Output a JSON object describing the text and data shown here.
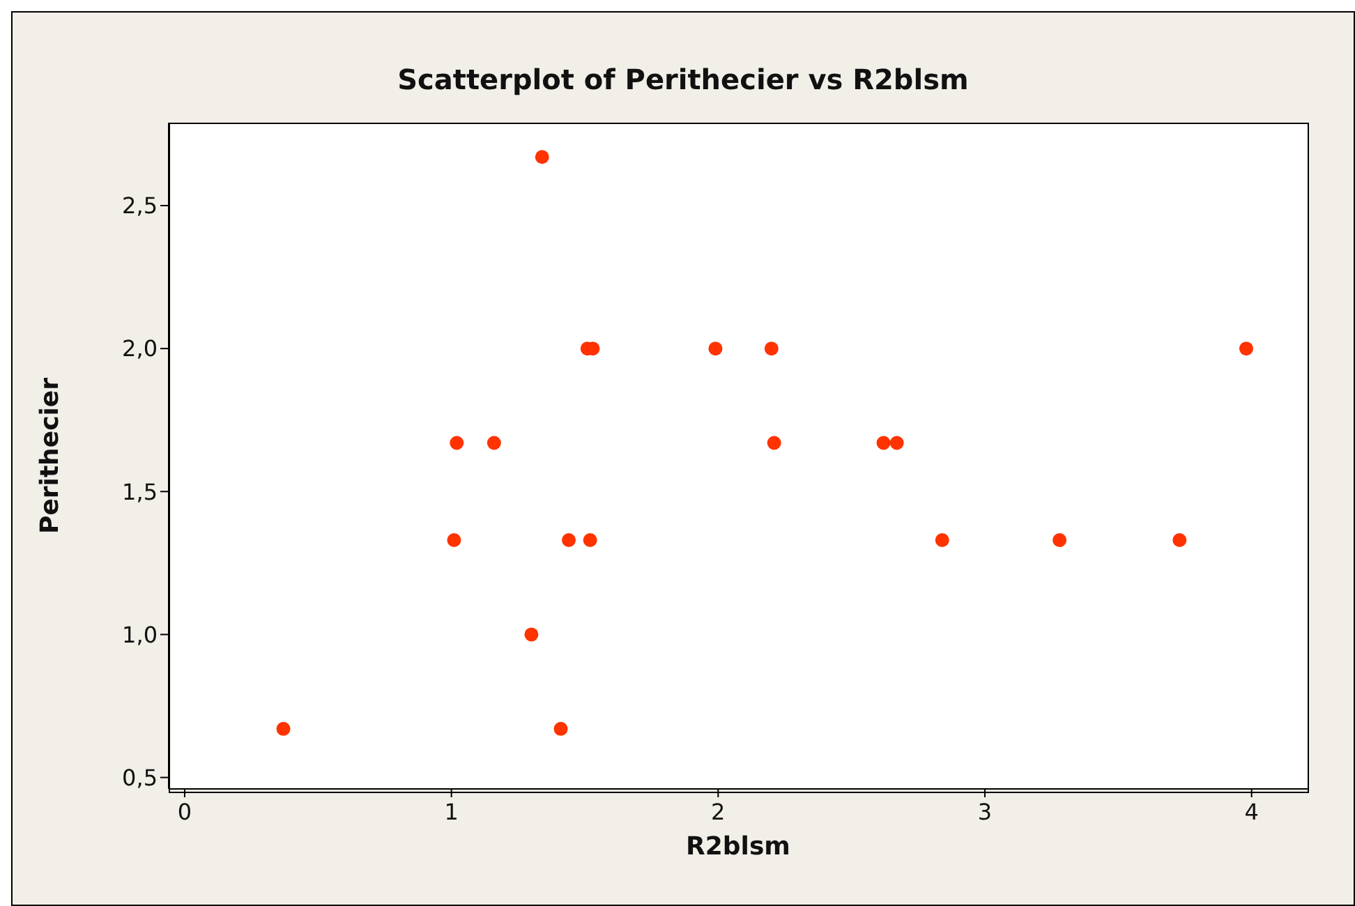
{
  "chart_data": {
    "type": "scatter",
    "title": "Scatterplot of Perithecier vs R2blsm",
    "xlabel": "R2blsm",
    "ylabel": "Perithecier",
    "x": [
      0.37,
      1.01,
      1.02,
      1.16,
      1.3,
      1.34,
      1.41,
      1.44,
      1.51,
      1.52,
      1.53,
      1.99,
      2.2,
      2.21,
      2.62,
      2.67,
      2.84,
      3.28,
      3.73,
      3.98
    ],
    "series": [
      {
        "color": "#ff3300",
        "values": [
          0.67,
          1.33,
          1.67,
          1.67,
          1.0,
          2.67,
          0.67,
          1.33,
          2.0,
          1.33,
          2.0,
          2.0,
          2.0,
          1.67,
          1.67,
          1.67,
          1.33,
          1.33,
          1.33,
          2.0
        ]
      }
    ],
    "marker": "circle",
    "grid": false,
    "legend": false,
    "xlim": [
      -0.06,
      4.21
    ],
    "xticks": [
      0,
      1,
      2,
      3,
      4
    ],
    "ylim": [
      0.46,
      2.79
    ],
    "yticks": [
      {
        "value": 0.5,
        "label": "0,5"
      },
      {
        "value": 1,
        "label": "1,0"
      },
      {
        "value": 1.5,
        "label": "1,5"
      },
      {
        "value": 2,
        "label": "2,0"
      },
      {
        "value": 2.5,
        "label": "2,5"
      }
    ]
  }
}
